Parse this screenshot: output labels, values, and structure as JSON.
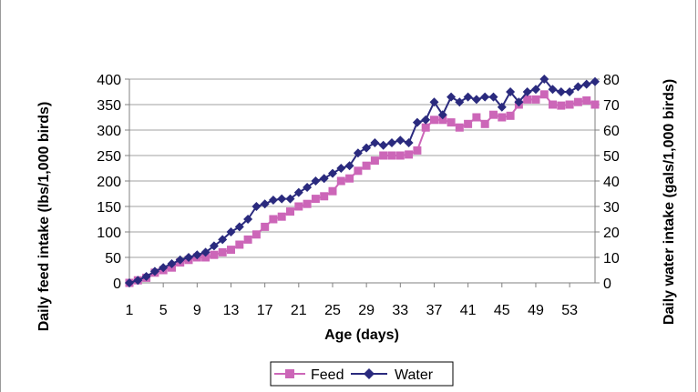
{
  "chart_data": {
    "type": "line",
    "title": "",
    "xlabel": "Age (days)",
    "ylabel_left": "Daily feed intake (lbs/1,000 birds)",
    "ylabel_right": "Daily water intake (gals/1,000 birds)",
    "x": [
      1,
      2,
      3,
      4,
      5,
      6,
      7,
      8,
      9,
      10,
      11,
      12,
      13,
      14,
      15,
      16,
      17,
      18,
      19,
      20,
      21,
      22,
      23,
      24,
      25,
      26,
      27,
      28,
      29,
      30,
      31,
      32,
      33,
      34,
      35,
      36,
      37,
      38,
      39,
      40,
      41,
      42,
      43,
      44,
      45,
      46,
      47,
      48,
      49,
      50,
      51,
      52,
      53,
      54,
      55,
      56
    ],
    "x_tick_labels": [
      "1",
      "5",
      "9",
      "13",
      "17",
      "21",
      "25",
      "29",
      "33",
      "37",
      "41",
      "45",
      "49",
      "53"
    ],
    "ylim_left": [
      0,
      400
    ],
    "ylim_right": [
      0,
      80
    ],
    "y_ticks_left": [
      "0",
      "50",
      "100",
      "150",
      "200",
      "250",
      "300",
      "350",
      "400"
    ],
    "y_ticks_right": [
      "0",
      "10",
      "20",
      "30",
      "40",
      "50",
      "60",
      "70",
      "80"
    ],
    "grid": true,
    "series": [
      {
        "name": "Feed",
        "axis": "left",
        "color": "#CC66B8",
        "marker": "square",
        "values": [
          0,
          5,
          10,
          20,
          25,
          30,
          40,
          45,
          50,
          50,
          55,
          60,
          65,
          75,
          85,
          95,
          110,
          125,
          130,
          140,
          150,
          155,
          165,
          170,
          180,
          200,
          205,
          220,
          230,
          240,
          250,
          250,
          250,
          252,
          260,
          305,
          320,
          320,
          315,
          305,
          312,
          325,
          312,
          330,
          325,
          328,
          350,
          360,
          360,
          370,
          350,
          348,
          350,
          355,
          358,
          350
        ]
      },
      {
        "name": "Water",
        "axis": "right",
        "color": "#2A2A7E",
        "marker": "diamond",
        "values": [
          0,
          1,
          2.5,
          4.5,
          6,
          7.5,
          9,
          10,
          11,
          12,
          14.5,
          17,
          20,
          22,
          25,
          30,
          31,
          32.5,
          33,
          33,
          35.5,
          37.5,
          40,
          41,
          43,
          45,
          46,
          51,
          53,
          55,
          54,
          55,
          56,
          55,
          63,
          64,
          71,
          66,
          73,
          71,
          73,
          72,
          73,
          73,
          69,
          75,
          71,
          75,
          76,
          80,
          76,
          75,
          75,
          77,
          78,
          79
        ]
      }
    ],
    "legend": {
      "position": "bottom",
      "entries": [
        "Feed",
        "Water"
      ]
    }
  }
}
